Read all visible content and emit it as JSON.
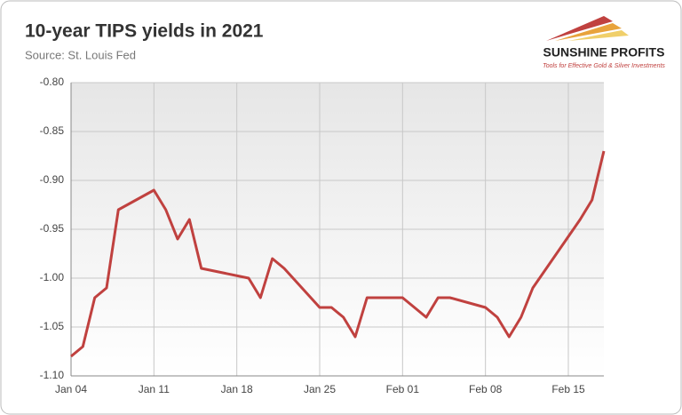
{
  "chart_data": {
    "type": "line",
    "title": "10-year TIPS yields in 2021",
    "subtitle": "Source: St. Louis Fed",
    "brand": {
      "name": "SUNSHINE PROFITS",
      "tagline": "Tools for Effective Gold & Silver Investments"
    },
    "x": [
      "Jan 04",
      "Jan 05",
      "Jan 06",
      "Jan 07",
      "Jan 08",
      "Jan 11",
      "Jan 12",
      "Jan 13",
      "Jan 14",
      "Jan 15",
      "Jan 19",
      "Jan 20",
      "Jan 21",
      "Jan 22",
      "Jan 25",
      "Jan 26",
      "Jan 27",
      "Jan 28",
      "Jan 29",
      "Feb 01",
      "Feb 02",
      "Feb 03",
      "Feb 04",
      "Feb 05",
      "Feb 08",
      "Feb 09",
      "Feb 10",
      "Feb 11",
      "Feb 12",
      "Feb 16",
      "Feb 17",
      "Feb 18"
    ],
    "series": [
      {
        "name": "10-year TIPS yield",
        "color": "#c0413f",
        "values": [
          -1.08,
          -1.07,
          -1.02,
          -1.01,
          -0.93,
          -0.91,
          -0.93,
          -0.96,
          -0.94,
          -0.99,
          -1.0,
          -1.02,
          -0.98,
          -0.99,
          -1.03,
          -1.03,
          -1.04,
          -1.06,
          -1.02,
          -1.02,
          -1.03,
          -1.04,
          -1.02,
          -1.02,
          -1.03,
          -1.04,
          -1.06,
          -1.04,
          -1.01,
          -0.94,
          -0.92,
          -0.87
        ]
      }
    ],
    "xlim": [
      "Jan 04",
      "Feb 18"
    ],
    "xticks": [
      "Jan 04",
      "Jan 11",
      "Jan 18",
      "Jan 25",
      "Feb 01",
      "Feb 08",
      "Feb 15"
    ],
    "ylim": [
      -1.1,
      -0.8
    ],
    "yticks": [
      {
        "value": -1.1,
        "label": "-1.10"
      },
      {
        "value": -1.05,
        "label": "-1.05"
      },
      {
        "value": -1.0,
        "label": "-1.00"
      },
      {
        "value": -0.95,
        "label": "-0.95"
      },
      {
        "value": -0.9,
        "label": "-0.90"
      },
      {
        "value": -0.85,
        "label": "-0.85"
      },
      {
        "value": -0.8,
        "label": "-0.80"
      }
    ],
    "grid": true
  }
}
